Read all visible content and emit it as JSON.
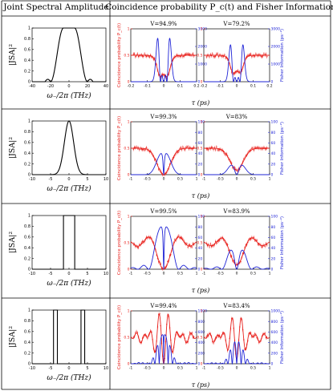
{
  "header": {
    "left": "Joint Spectral Amplitude",
    "right": "Coincidence probability P_c(t) and Fisher Information"
  },
  "labels": {
    "jsa_ylabel": "|JSA|²",
    "jsa_xlabel": "ω₋/2π (THz)",
    "tau_xlabel": "τ (ps)",
    "coinc_ylabel": "Coincidence probability P_c(t)",
    "fisher_ylabel": "Fisher Information (ps⁻²)"
  },
  "colors": {
    "coincidence": "#e8201c",
    "fisher": "#1f24d6",
    "jsa": "#000000",
    "grid": "#000000"
  },
  "chart_data": [
    {
      "type": "line",
      "row": 0,
      "panel": "jsa",
      "shape": "flat-top",
      "x_ticks": [
        -40,
        -20,
        0,
        20,
        40
      ],
      "xlim": [
        -40,
        40
      ],
      "y_ticks": [
        0,
        0.2,
        0.4,
        0.6,
        0.8,
        1
      ],
      "ylim": [
        0,
        1
      ]
    },
    {
      "type": "line",
      "row": 0,
      "panel": "coincidence",
      "title": "V=94.9%",
      "x_ticks": [
        -0.2,
        -0.1,
        0,
        0.1,
        0.2
      ],
      "xlim": [
        -0.2,
        0.2
      ],
      "y_ticks": [
        0,
        0.5,
        1
      ],
      "ylim": [
        0,
        1
      ],
      "y2_ticks": [
        0,
        1000,
        2000,
        3000
      ],
      "y2lim": [
        0,
        3000
      ],
      "visibility": 0.949
    },
    {
      "type": "line",
      "row": 0,
      "panel": "coincidence",
      "title": "V=79.2%",
      "x_ticks": [
        -0.2,
        -0.1,
        0,
        0.1,
        0.2
      ],
      "xlim": [
        -0.2,
        0.2
      ],
      "y_ticks": [
        0,
        0.5,
        1
      ],
      "ylim": [
        0,
        1
      ],
      "y2_ticks": [
        0,
        1000,
        2000,
        3000
      ],
      "y2lim": [
        0,
        3000
      ],
      "visibility": 0.792
    },
    {
      "type": "line",
      "row": 1,
      "panel": "jsa",
      "shape": "gaussian",
      "x_ticks": [
        -10,
        -5,
        0,
        5,
        10
      ],
      "xlim": [
        -10,
        10
      ],
      "y_ticks": [
        0,
        0.2,
        0.4,
        0.6,
        0.8,
        1
      ],
      "ylim": [
        0,
        1
      ]
    },
    {
      "type": "line",
      "row": 1,
      "panel": "coincidence",
      "title": "V=99.3%",
      "x_ticks": [
        -1,
        -0.5,
        0,
        0.5,
        1
      ],
      "xlim": [
        -1,
        1
      ],
      "y_ticks": [
        0,
        0.5,
        1
      ],
      "ylim": [
        0,
        1
      ],
      "y2_ticks": [
        0,
        20,
        40,
        60,
        80,
        100
      ],
      "y2lim": [
        0,
        100
      ],
      "visibility": 0.993
    },
    {
      "type": "line",
      "row": 1,
      "panel": "coincidence",
      "title": "V=83%",
      "x_ticks": [
        -1,
        -0.5,
        0,
        0.5,
        1
      ],
      "xlim": [
        -1,
        1
      ],
      "y_ticks": [
        0,
        0.5,
        1
      ],
      "ylim": [
        0,
        1
      ],
      "y2_ticks": [
        0,
        20,
        40,
        60,
        80,
        100
      ],
      "y2lim": [
        0,
        100
      ],
      "visibility": 0.83
    },
    {
      "type": "line",
      "row": 2,
      "panel": "jsa",
      "shape": "rect",
      "x_ticks": [
        -10,
        -5,
        0,
        5,
        10
      ],
      "xlim": [
        -10,
        10
      ],
      "y_ticks": [
        0,
        0.2,
        0.4,
        0.6,
        0.8,
        1
      ],
      "ylim": [
        0,
        1
      ]
    },
    {
      "type": "line",
      "row": 2,
      "panel": "coincidence",
      "title": "V=99.5%",
      "x_ticks": [
        -1,
        -0.5,
        0,
        0.5,
        1
      ],
      "xlim": [
        -1,
        1
      ],
      "y_ticks": [
        0,
        0.5,
        1
      ],
      "ylim": [
        0,
        1
      ],
      "y2_ticks": [
        0,
        20,
        40,
        60,
        80,
        100
      ],
      "y2lim": [
        0,
        100
      ],
      "visibility": 0.995
    },
    {
      "type": "line",
      "row": 2,
      "panel": "coincidence",
      "title": "V=83.9%",
      "x_ticks": [
        -1,
        -0.5,
        0,
        0.5,
        1
      ],
      "xlim": [
        -1,
        1
      ],
      "y_ticks": [
        0,
        0.5,
        1
      ],
      "ylim": [
        0,
        1
      ],
      "y2_ticks": [
        0,
        20,
        40,
        60,
        80,
        100
      ],
      "y2lim": [
        0,
        100
      ],
      "visibility": 0.839
    },
    {
      "type": "line",
      "row": 3,
      "panel": "jsa",
      "shape": "double-rect",
      "x_ticks": [
        -10,
        -5,
        0,
        5,
        10
      ],
      "xlim": [
        -10,
        10
      ],
      "y_ticks": [
        0,
        0.2,
        0.4,
        0.6,
        0.8,
        1
      ],
      "ylim": [
        0,
        1
      ]
    },
    {
      "type": "line",
      "row": 3,
      "panel": "coincidence",
      "title": "V=99.4%",
      "x_ticks": [
        -1,
        -0.5,
        0,
        0.5,
        1
      ],
      "xlim": [
        -1,
        1
      ],
      "y_ticks": [
        0,
        0.5,
        1
      ],
      "ylim": [
        0,
        1
      ],
      "y2_ticks": [
        0,
        200,
        400,
        600,
        800,
        1000
      ],
      "y2lim": [
        0,
        1000
      ],
      "visibility": 0.994
    },
    {
      "type": "line",
      "row": 3,
      "panel": "coincidence",
      "title": "V=83.4%",
      "x_ticks": [
        -1,
        -0.5,
        0,
        0.5,
        1
      ],
      "xlim": [
        -1,
        1
      ],
      "y_ticks": [
        0,
        0.5,
        1
      ],
      "ylim": [
        0,
        1
      ],
      "y2_ticks": [
        0,
        200,
        400,
        600,
        800,
        1000
      ],
      "y2lim": [
        0,
        1000
      ],
      "visibility": 0.834
    }
  ]
}
